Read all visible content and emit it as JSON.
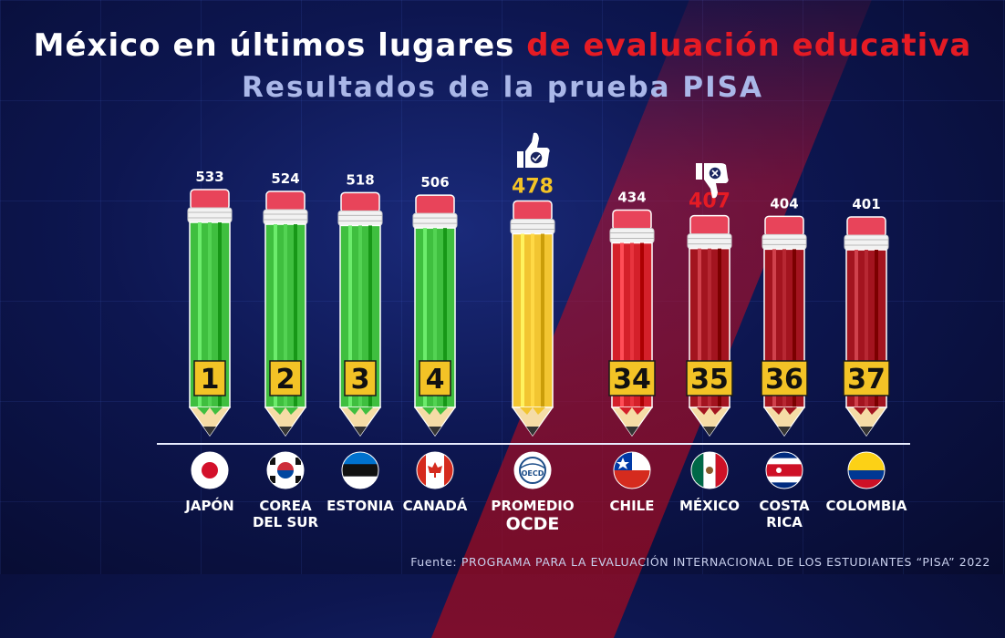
{
  "header": {
    "title_white": "México en últimos lugares",
    "title_red": "de evaluación educativa",
    "subtitle": "Resultados de la prueba PISA"
  },
  "source": "Fuente: PROGRAMA PARA LA EVALUACIÓN INTERNACIONAL DE LOS ESTUDIANTES “PISA” 2022",
  "icons": {
    "good": "thumbs-up-check-icon",
    "bad": "thumbs-down-x-icon"
  },
  "colors": {
    "green": "#3fbf3f",
    "yellow": "#f2c531",
    "red": "#d4202a",
    "darkred": "#a3141f",
    "rank_box": "#f3c326",
    "ocde_value": "#f3c326",
    "mexico_value": "#e51b24"
  },
  "chart_data": {
    "type": "bar",
    "categories": [
      "JAPÓN",
      "COREA DEL SUR",
      "ESTONIA",
      "CANADÁ",
      "PROMEDIO OCDE",
      "CHILE",
      "MÉXICO",
      "COSTA RICA",
      "COLOMBIA"
    ],
    "label_lines": [
      [
        "JAPÓN"
      ],
      [
        "COREA",
        "DEL SUR"
      ],
      [
        "ESTONIA"
      ],
      [
        "CANADÁ"
      ],
      [
        "PROMEDIO",
        "OCDE"
      ],
      [
        "CHILE"
      ],
      [
        "MÉXICO"
      ],
      [
        "COSTA",
        "RICA"
      ],
      [
        "COLOMBIA"
      ]
    ],
    "values": [
      533,
      524,
      518,
      506,
      478,
      434,
      407,
      404,
      401
    ],
    "ranks": [
      "1",
      "2",
      "3",
      "4",
      "",
      "34",
      "35",
      "36",
      "37"
    ],
    "flags": [
      "flag-japan-icon",
      "flag-korea-icon",
      "flag-estonia-icon",
      "flag-canada-icon",
      "oecd-logo-icon",
      "flag-chile-icon",
      "flag-mexico-icon",
      "flag-costa-rica-icon",
      "flag-colombia-icon"
    ],
    "bar_colors": [
      "green",
      "green",
      "green",
      "green",
      "yellow",
      "red",
      "darkred",
      "darkred",
      "darkred"
    ],
    "highlight": {
      "PROMEDIO OCDE": "good",
      "MÉXICO": "bad"
    }
  }
}
